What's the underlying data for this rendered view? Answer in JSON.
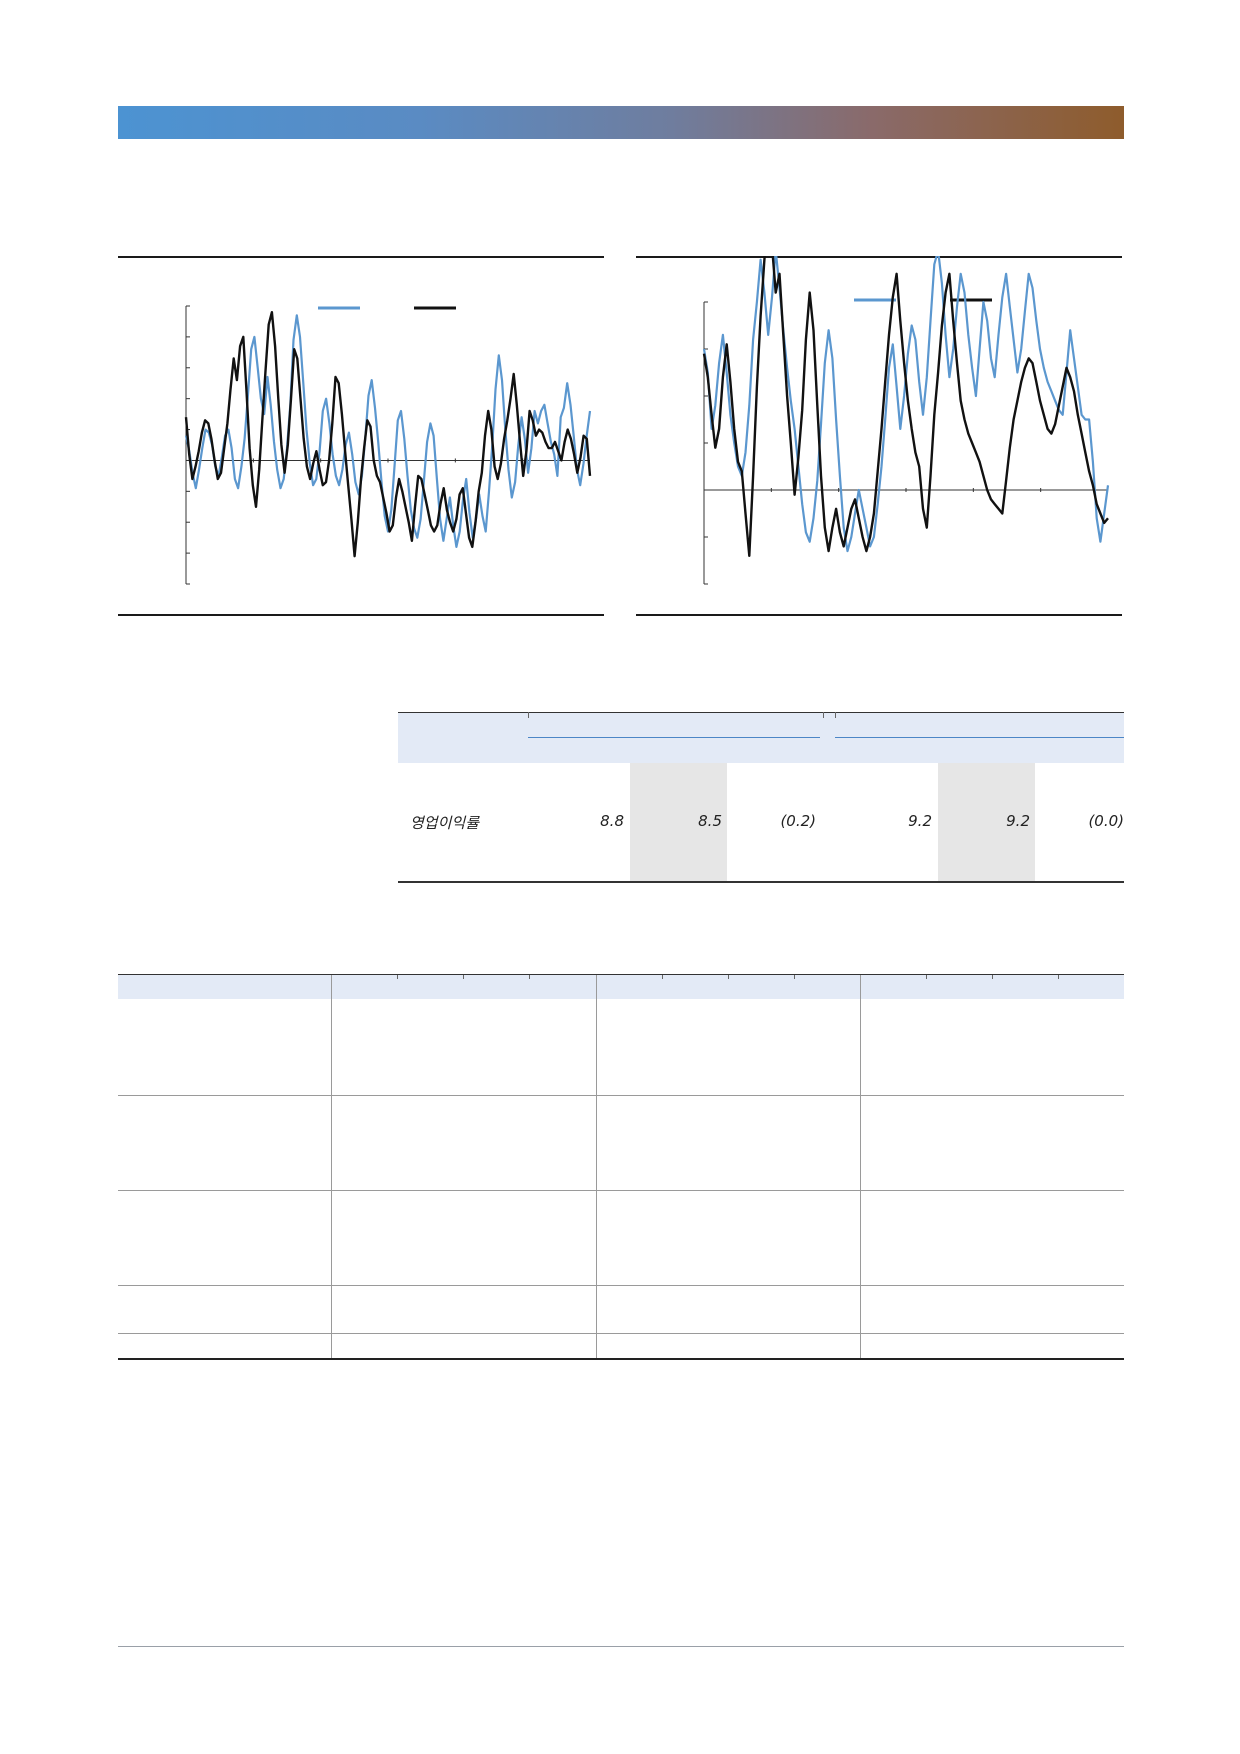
{
  "colors": {
    "series_blue": "#5b97cf",
    "series_black": "#111111",
    "header_gradient_start": "#4c93d2",
    "header_gradient_end": "#8e5c2c",
    "table_header_band": "#e3eaf6",
    "highlight_column": "#e6e6e6"
  },
  "chart_data": [
    {
      "type": "line",
      "grid": false,
      "legend_placement": "top-center",
      "series": [
        {
          "color": "#5b97cf",
          "values": [
            0.8,
            0.3,
            -0.4,
            -0.9,
            -0.3,
            0.4,
            1.0,
            0.9,
            0.5,
            -0.2,
            -0.5,
            0.1,
            0.8,
            1.0,
            0.4,
            -0.6,
            -0.9,
            -0.2,
            0.7,
            2.1,
            3.6,
            4.0,
            3.0,
            2.0,
            1.5,
            2.7,
            1.8,
            0.6,
            -0.3,
            -0.9,
            -0.6,
            0.4,
            1.8,
            3.9,
            4.7,
            4.0,
            2.5,
            1.0,
            -0.1,
            -0.8,
            -0.6,
            0.3,
            1.6,
            2.0,
            1.2,
            0.2,
            -0.5,
            -0.8,
            -0.3,
            0.5,
            0.9,
            0.2,
            -0.7,
            -1.1,
            -0.5,
            0.7,
            2.1,
            2.6,
            1.7,
            0.6,
            -0.7,
            -1.8,
            -2.3,
            -1.6,
            -0.2,
            1.3,
            1.6,
            0.7,
            -0.5,
            -1.6,
            -2.2,
            -2.5,
            -1.9,
            -0.7,
            0.6,
            1.2,
            0.8,
            -0.6,
            -1.9,
            -2.6,
            -1.9,
            -1.2,
            -2.1,
            -2.8,
            -2.3,
            -1.3,
            -0.6,
            -1.7,
            -2.5,
            -1.9,
            -1.1,
            -1.8,
            -2.3,
            -1.0,
            0.5,
            2.3,
            3.4,
            2.6,
            1.0,
            -0.3,
            -1.2,
            -0.7,
            0.5,
            1.4,
            0.7,
            -0.4,
            0.4,
            1.6,
            1.2,
            1.6,
            1.8,
            1.2,
            0.6,
            0.2,
            -0.5,
            1.4,
            1.7,
            2.5,
            1.8,
            0.8,
            -0.3,
            -0.8,
            -0.1,
            0.8,
            1.6
          ]
        },
        {
          "color": "#111111",
          "values": [
            1.4,
            0.2,
            -0.6,
            -0.2,
            0.3,
            0.9,
            1.3,
            1.2,
            0.7,
            0.0,
            -0.6,
            -0.4,
            0.4,
            1.2,
            2.3,
            3.3,
            2.6,
            3.7,
            4.0,
            2.3,
            0.4,
            -0.8,
            -1.5,
            -0.3,
            1.3,
            2.9,
            4.4,
            4.8,
            3.7,
            2.0,
            0.5,
            -0.4,
            0.5,
            2.0,
            3.6,
            3.3,
            2.0,
            0.7,
            -0.2,
            -0.6,
            -0.1,
            0.3,
            -0.3,
            -0.8,
            -0.7,
            0.0,
            1.2,
            2.7,
            2.5,
            1.5,
            0.3,
            -0.8,
            -1.9,
            -3.1,
            -2.0,
            -0.6,
            0.4,
            1.3,
            1.1,
            0.0,
            -0.5,
            -0.7,
            -1.2,
            -1.7,
            -2.3,
            -2.1,
            -1.2,
            -0.6,
            -1.0,
            -1.5,
            -2.0,
            -2.6,
            -1.5,
            -0.5,
            -0.6,
            -1.1,
            -1.6,
            -2.1,
            -2.3,
            -2.1,
            -1.4,
            -0.9,
            -1.6,
            -2.0,
            -2.3,
            -1.9,
            -1.1,
            -0.9,
            -1.7,
            -2.5,
            -2.8,
            -2.0,
            -1.0,
            -0.4,
            0.8,
            1.6,
            1.0,
            -0.2,
            -0.6,
            -0.1,
            0.7,
            1.3,
            2.0,
            2.8,
            1.8,
            0.6,
            -0.5,
            0.3,
            1.6,
            1.3,
            0.8,
            1.0,
            0.9,
            0.6,
            0.4,
            0.4,
            0.6,
            0.3,
            0.0,
            0.6,
            1.0,
            0.7,
            0.2,
            -0.4,
            0.1,
            0.8,
            0.7,
            -0.5
          ]
        }
      ]
    },
    {
      "type": "line",
      "grid": false,
      "legend_placement": "top-right",
      "series": [
        {
          "color": "#5b97cf",
          "values": [
            3.0,
            2.5,
            1.3,
            1.8,
            2.7,
            3.3,
            2.5,
            1.6,
            1.0,
            0.5,
            0.3,
            0.8,
            1.8,
            3.2,
            4.0,
            4.9,
            4.2,
            3.3,
            4.1,
            5.1,
            4.3,
            3.4,
            2.6,
            1.9,
            1.3,
            0.5,
            -0.3,
            -0.9,
            -1.1,
            -0.6,
            0.2,
            1.4,
            2.7,
            3.4,
            2.8,
            1.5,
            0.3,
            -0.8,
            -1.3,
            -1.0,
            -0.5,
            0.0,
            -0.4,
            -0.8,
            -1.2,
            -1.0,
            -0.3,
            0.5,
            1.5,
            2.6,
            3.1,
            2.2,
            1.3,
            2.0,
            2.9,
            3.5,
            3.2,
            2.3,
            1.6,
            2.4,
            3.6,
            4.8,
            5.1,
            4.4,
            3.3,
            2.4,
            3.0,
            3.9,
            4.6,
            4.2,
            3.3,
            2.6,
            2.0,
            3.0,
            4.0,
            3.6,
            2.8,
            2.4,
            3.3,
            4.1,
            4.6,
            3.9,
            3.2,
            2.5,
            3.0,
            3.8,
            4.6,
            4.3,
            3.6,
            3.0,
            2.6,
            2.3,
            2.1,
            1.9,
            1.7,
            1.6,
            2.5,
            3.4,
            2.8,
            2.2,
            1.6,
            1.5,
            1.5,
            0.6,
            -0.6,
            -1.1,
            -0.5,
            0.1
          ]
        },
        {
          "color": "#111111",
          "values": [
            2.9,
            2.4,
            1.6,
            0.9,
            1.3,
            2.4,
            3.1,
            2.3,
            1.3,
            0.6,
            0.4,
            -0.5,
            -1.4,
            0.3,
            2.2,
            3.7,
            4.9,
            5.8,
            5.2,
            4.2,
            4.6,
            3.3,
            2.0,
            1.0,
            -0.1,
            0.7,
            1.7,
            3.2,
            4.2,
            3.4,
            1.8,
            0.3,
            -0.8,
            -1.3,
            -0.8,
            -0.4,
            -0.9,
            -1.2,
            -0.8,
            -0.4,
            -0.2,
            -0.6,
            -1.0,
            -1.3,
            -1.0,
            -0.5,
            0.4,
            1.3,
            2.3,
            3.3,
            4.1,
            4.6,
            3.6,
            2.7,
            1.9,
            1.3,
            0.8,
            0.5,
            -0.4,
            -0.8,
            0.3,
            1.6,
            2.5,
            3.5,
            4.2,
            4.6,
            3.6,
            2.7,
            1.9,
            1.5,
            1.2,
            1.0,
            0.8,
            0.6,
            0.3,
            0.0,
            -0.2,
            -0.3,
            -0.4,
            -0.5,
            0.2,
            0.9,
            1.5,
            1.9,
            2.3,
            2.6,
            2.8,
            2.7,
            2.3,
            1.9,
            1.6,
            1.3,
            1.2,
            1.4,
            1.8,
            2.2,
            2.6,
            2.4,
            2.1,
            1.6,
            1.2,
            0.8,
            0.4,
            0.1,
            -0.3,
            -0.5,
            -0.7,
            -0.6
          ]
        }
      ]
    }
  ],
  "summary_table": {
    "rows": [
      {
        "label": "영업이익률",
        "values": [
          "8.8",
          "8.5",
          "(0.2)",
          "9.2",
          "9.2",
          "(0.0)"
        ]
      }
    ]
  }
}
